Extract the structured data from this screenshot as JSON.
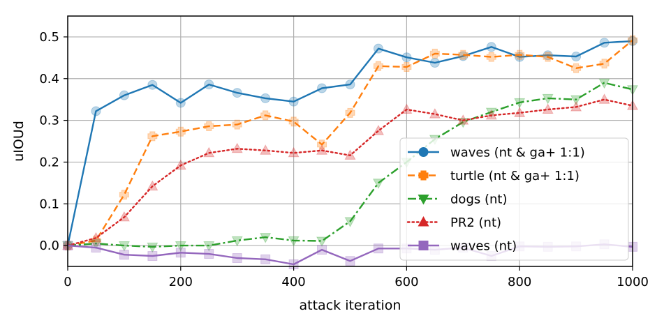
{
  "chart_data": {
    "type": "line",
    "title": "",
    "xlabel": "attack iteration",
    "ylabel": "uIOUd",
    "xlim": [
      0,
      1000
    ],
    "ylim": [
      -0.05,
      0.55
    ],
    "xticks": [
      0,
      200,
      400,
      600,
      800,
      1000
    ],
    "yticks": [
      0.0,
      0.1,
      0.2,
      0.3,
      0.4,
      0.5
    ],
    "ytick_labels": [
      "0.0",
      "0.1",
      "0.2",
      "0.3",
      "0.4",
      "0.5"
    ],
    "grid": true,
    "legend_position": "center-right",
    "x": [
      0,
      50,
      100,
      150,
      200,
      250,
      300,
      350,
      400,
      450,
      500,
      550,
      600,
      650,
      700,
      750,
      800,
      850,
      900,
      950,
      1000
    ],
    "series": [
      {
        "name": "waves (nt & ga+ 1:1)",
        "color": "#1f77b4",
        "linestyle": "solid",
        "marker": "circle",
        "values": [
          0.0,
          0.322,
          0.36,
          0.385,
          0.342,
          0.386,
          0.366,
          0.353,
          0.345,
          0.377,
          0.386,
          0.472,
          0.451,
          0.438,
          0.454,
          0.476,
          0.452,
          0.456,
          0.453,
          0.486,
          0.49
        ]
      },
      {
        "name": "turtle (nt & ga+ 1:1)",
        "color": "#ff7f0e",
        "linestyle": "dashed",
        "marker": "plus",
        "values": [
          0.0,
          0.012,
          0.122,
          0.262,
          0.273,
          0.286,
          0.29,
          0.312,
          0.297,
          0.242,
          0.318,
          0.43,
          0.428,
          0.46,
          0.457,
          0.452,
          0.457,
          0.452,
          0.425,
          0.436,
          0.492
        ]
      },
      {
        "name": "dogs (nt)",
        "color": "#2ca02c",
        "linestyle": "dashdot",
        "marker": "triangle-down",
        "values": [
          0.0,
          0.005,
          0.0,
          -0.003,
          0.0,
          0.0,
          0.012,
          0.02,
          0.012,
          0.011,
          0.058,
          0.15,
          0.2,
          0.255,
          0.296,
          0.32,
          0.343,
          0.353,
          0.35,
          0.39,
          0.374
        ]
      },
      {
        "name": "PR2 (nt)",
        "color": "#d62728",
        "linestyle": "dotted",
        "marker": "triangle-up",
        "values": [
          0.0,
          0.018,
          0.068,
          0.142,
          0.192,
          0.222,
          0.232,
          0.228,
          0.222,
          0.228,
          0.216,
          0.275,
          0.326,
          0.315,
          0.3,
          0.312,
          0.318,
          0.326,
          0.332,
          0.35,
          0.335
        ]
      },
      {
        "name": "waves (nt)",
        "color": "#9467bd",
        "linestyle": "solid",
        "marker": "square",
        "values": [
          0.0,
          -0.005,
          -0.022,
          -0.025,
          -0.017,
          -0.02,
          -0.03,
          -0.033,
          -0.045,
          -0.01,
          -0.037,
          -0.007,
          -0.007,
          -0.01,
          -0.005,
          -0.025,
          -0.002,
          -0.003,
          -0.002,
          0.003,
          -0.003
        ]
      }
    ]
  }
}
